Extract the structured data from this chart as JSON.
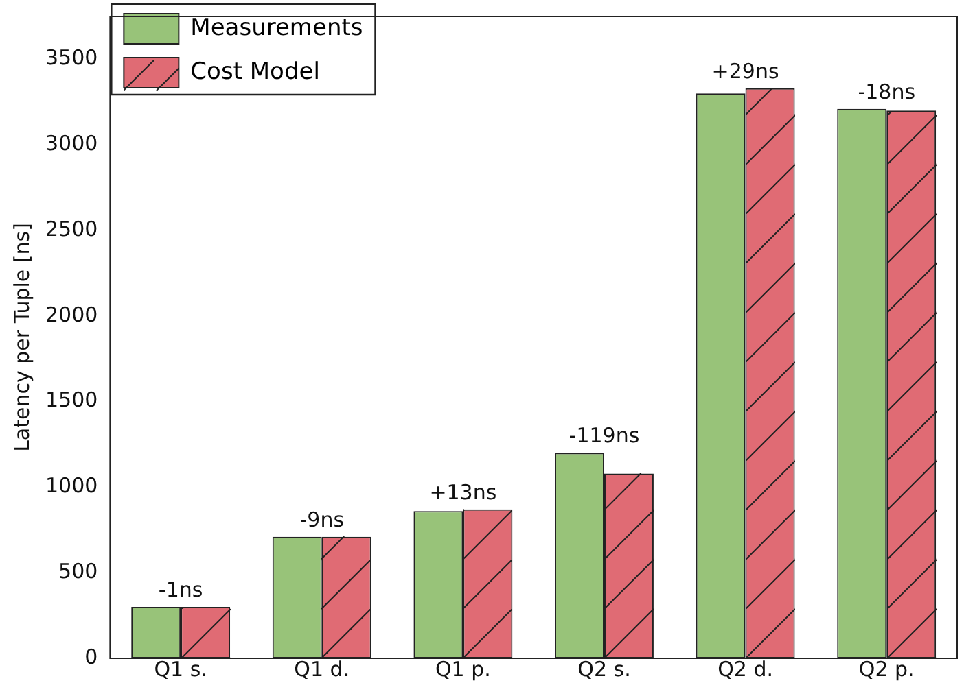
{
  "chart_data": {
    "type": "bar",
    "ylabel": "Latency per Tuple [ns]",
    "categories": [
      "Q1 s.",
      "Q1 d.",
      "Q1 p.",
      "Q2 s.",
      "Q2 d.",
      "Q2 p."
    ],
    "series": [
      {
        "name": "Measurements",
        "color": "#98c379",
        "values": [
          300,
          710,
          860,
          1200,
          3300,
          3210
        ]
      },
      {
        "name": "Cost Model",
        "color": "#e06b74",
        "values": [
          300,
          710,
          870,
          1080,
          3330,
          3200
        ]
      }
    ],
    "ylim": [
      0,
      3750
    ],
    "yticks": [
      0,
      500,
      1000,
      1500,
      2000,
      2500,
      3000,
      3500
    ],
    "grid": false,
    "legend": "top left",
    "annotations": [
      {
        "text": "-1ns",
        "x": "Q1 s.",
        "y": 300
      },
      {
        "text": "-9ns",
        "x": "Q1 d.",
        "y": 710
      },
      {
        "text": "+13ns",
        "x": "Q1 p.",
        "y": 870
      },
      {
        "text": "-119ns",
        "x": "Q2 s.",
        "y": 1200
      },
      {
        "text": "+29ns",
        "x": "Q2 d.",
        "y": 3330
      },
      {
        "text": "-18ns",
        "x": "Q2 p.",
        "y": 3210
      }
    ]
  }
}
